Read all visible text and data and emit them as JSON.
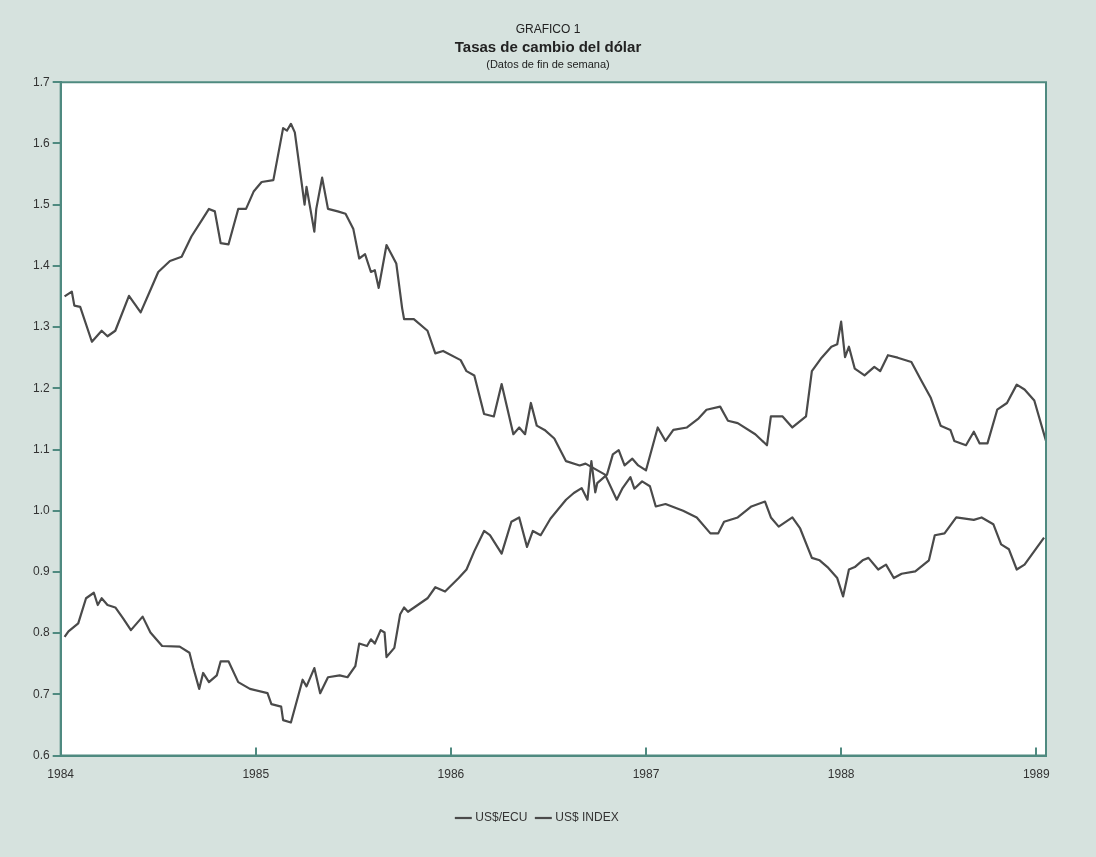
{
  "chart_data": {
    "type": "line",
    "title": "Tasas de cambio del dólar",
    "subtitle": "(Datos de fin de semana)",
    "annotations": [
      "GRAFICO 1"
    ],
    "xlim": [
      1984,
      1989.05
    ],
    "xticks": [
      1984,
      1985,
      1986,
      1987,
      1988,
      1989
    ],
    "ylim": [
      0.6,
      1.7
    ],
    "yticks": [
      0.6,
      0.7,
      0.8,
      0.9,
      {
        "value": 1,
        "label": "1.0"
      },
      1.1,
      1.2,
      1.3,
      1.4,
      1.5,
      1.6,
      1.7
    ],
    "grid": false,
    "legend": "bottom",
    "marker": "none",
    "line_style": "solid",
    "series": [
      {
        "name": "US$/ECU",
        "color": "#4a4a4a",
        "x": [
          1984.02,
          1984.04,
          1984.09,
          1984.13,
          1984.17,
          1984.19,
          1984.21,
          1984.24,
          1984.28,
          1984.32,
          1984.36,
          1984.42,
          1984.46,
          1984.52,
          1984.61,
          1984.66,
          1984.68,
          1984.71,
          1984.73,
          1984.76,
          1984.8,
          1984.82,
          1984.86,
          1984.91,
          1984.97,
          1985.06,
          1985.08,
          1985.13,
          1985.14,
          1985.18,
          1985.24,
          1985.26,
          1985.3,
          1985.33,
          1985.37,
          1985.43,
          1985.47,
          1985.51,
          1985.53,
          1985.57,
          1985.59,
          1985.61,
          1985.64,
          1985.66,
          1985.67,
          1985.71,
          1985.74,
          1985.76,
          1985.78,
          1985.83,
          1985.88,
          1985.92,
          1985.97,
          1986.04,
          1986.08,
          1986.12,
          1986.17,
          1986.2,
          1986.26,
          1986.31,
          1986.35,
          1986.39,
          1986.42,
          1986.46,
          1986.51,
          1986.59,
          1986.63,
          1986.67,
          1986.7,
          1986.72,
          1986.74,
          1986.75,
          1986.8,
          1986.83,
          1986.86,
          1986.89,
          1986.93,
          1986.96,
          1987,
          1987.06,
          1987.1,
          1987.14,
          1987.21,
          1987.27,
          1987.31,
          1987.38,
          1987.42,
          1987.47,
          1987.56,
          1987.62,
          1987.64,
          1987.7,
          1987.75,
          1987.82,
          1987.85,
          1987.9,
          1987.95,
          1987.98,
          1988,
          1988.02,
          1988.04,
          1988.07,
          1988.12,
          1988.17,
          1988.2,
          1988.24,
          1988.29,
          1988.36,
          1988.41,
          1988.46,
          1988.51,
          1988.56,
          1988.58,
          1988.64,
          1988.68,
          1988.71,
          1988.75,
          1988.8,
          1988.85,
          1988.9,
          1988.94,
          1988.99,
          1989.05
        ],
        "values": [
          0.794,
          0.803,
          0.816,
          0.857,
          0.866,
          0.846,
          0.857,
          0.846,
          0.842,
          0.824,
          0.805,
          0.827,
          0.801,
          0.779,
          0.778,
          0.768,
          0.743,
          0.709,
          0.735,
          0.72,
          0.731,
          0.754,
          0.754,
          0.72,
          0.709,
          0.702,
          0.684,
          0.68,
          0.658,
          0.654,
          0.724,
          0.713,
          0.743,
          0.702,
          0.728,
          0.731,
          0.728,
          0.746,
          0.783,
          0.779,
          0.79,
          0.783,
          0.805,
          0.801,
          0.761,
          0.776,
          0.831,
          0.842,
          0.835,
          0.846,
          0.857,
          0.875,
          0.868,
          0.89,
          0.904,
          0.934,
          0.967,
          0.96,
          0.93,
          0.982,
          0.989,
          0.941,
          0.967,
          0.96,
          0.987,
          1.018,
          1.029,
          1.037,
          1.018,
          1.081,
          1.03,
          1.045,
          1.059,
          1.092,
          1.099,
          1.074,
          1.085,
          1.074,
          1.066,
          1.136,
          1.114,
          1.132,
          1.136,
          1.151,
          1.165,
          1.17,
          1.147,
          1.143,
          1.125,
          1.107,
          1.154,
          1.154,
          1.136,
          1.154,
          1.228,
          1.25,
          1.268,
          1.272,
          1.309,
          1.251,
          1.268,
          1.232,
          1.221,
          1.235,
          1.228,
          1.254,
          1.25,
          1.243,
          1.213,
          1.184,
          1.139,
          1.132,
          1.114,
          1.107,
          1.129,
          1.11,
          1.11,
          1.165,
          1.176,
          1.206,
          1.198,
          1.18,
          1.114
        ]
      },
      {
        "name": "US$ INDEX",
        "color": "#4a4a4a",
        "x": [
          1984.02,
          1984.057,
          1984.07,
          1984.1,
          1984.16,
          1984.21,
          1984.24,
          1984.28,
          1984.35,
          1984.41,
          1984.47,
          1984.5,
          1984.56,
          1984.62,
          1984.67,
          1984.73,
          1984.76,
          1984.79,
          1984.82,
          1984.86,
          1984.91,
          1984.95,
          1984.99,
          1985.03,
          1985.09,
          1985.11,
          1985.14,
          1985.16,
          1985.18,
          1985.2,
          1985.25,
          1985.26,
          1985.3,
          1985.31,
          1985.34,
          1985.37,
          1985.42,
          1985.46,
          1985.5,
          1985.53,
          1985.56,
          1985.59,
          1985.61,
          1985.63,
          1985.67,
          1985.72,
          1985.75,
          1985.76,
          1985.81,
          1985.88,
          1985.92,
          1985.96,
          1986.05,
          1986.08,
          1986.12,
          1986.17,
          1986.22,
          1986.26,
          1986.32,
          1986.35,
          1986.38,
          1986.41,
          1986.44,
          1986.48,
          1986.53,
          1986.59,
          1986.66,
          1986.69,
          1986.79,
          1986.85,
          1986.88,
          1986.92,
          1986.94,
          1986.98,
          1987.02,
          1987.05,
          1987.1,
          1987.19,
          1987.26,
          1987.33,
          1987.37,
          1987.4,
          1987.47,
          1987.54,
          1987.61,
          1987.64,
          1987.68,
          1987.75,
          1987.79,
          1987.85,
          1987.89,
          1987.93,
          1987.98,
          1988.01,
          1988.04,
          1988.07,
          1988.11,
          1988.14,
          1988.19,
          1988.23,
          1988.27,
          1988.31,
          1988.38,
          1988.45,
          1988.48,
          1988.53,
          1988.59,
          1988.68,
          1988.72,
          1988.78,
          1988.82,
          1988.86,
          1988.9,
          1988.94,
          1988.99,
          1989.04
        ],
        "values": [
          1.35,
          1.358,
          1.335,
          1.333,
          1.276,
          1.294,
          1.285,
          1.294,
          1.351,
          1.324,
          1.368,
          1.39,
          1.408,
          1.415,
          1.448,
          1.478,
          1.493,
          1.489,
          1.437,
          1.435,
          1.493,
          1.493,
          1.522,
          1.537,
          1.54,
          1.574,
          1.625,
          1.621,
          1.632,
          1.618,
          1.5,
          1.529,
          1.456,
          1.493,
          1.544,
          1.493,
          1.489,
          1.485,
          1.46,
          1.412,
          1.419,
          1.39,
          1.393,
          1.364,
          1.434,
          1.404,
          1.331,
          1.313,
          1.313,
          1.294,
          1.257,
          1.261,
          1.246,
          1.228,
          1.221,
          1.158,
          1.154,
          1.207,
          1.125,
          1.136,
          1.125,
          1.176,
          1.139,
          1.132,
          1.118,
          1.081,
          1.074,
          1.077,
          1.059,
          1.018,
          1.037,
          1.055,
          1.036,
          1.048,
          1.04,
          1.007,
          1.011,
          1,
          0.989,
          0.963,
          0.963,
          0.982,
          0.989,
          1.007,
          1.015,
          0.989,
          0.974,
          0.989,
          0.971,
          0.923,
          0.919,
          0.908,
          0.89,
          0.86,
          0.904,
          0.908,
          0.919,
          0.923,
          0.904,
          0.912,
          0.89,
          0.897,
          0.901,
          0.919,
          0.96,
          0.963,
          0.989,
          0.985,
          0.989,
          0.978,
          0.945,
          0.937,
          0.904,
          0.912,
          0.934,
          0.956
        ]
      }
    ]
  }
}
